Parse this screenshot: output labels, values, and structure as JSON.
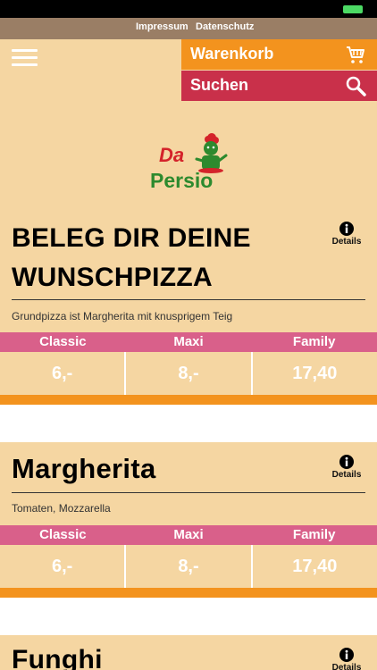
{
  "top_nav": {
    "impressum": "Impressum",
    "datenschutz": "Datenschutz"
  },
  "header": {
    "cart_label": "Warenkorb",
    "search_label": "Suchen"
  },
  "logo": {
    "text_line1": "Da",
    "text_line2": "Persio"
  },
  "colors": {
    "header_bg": "#f5d6a2",
    "orange": "#f3931e",
    "red": "#c9304a",
    "pink": "#d9608a",
    "nav_bg": "#9a7e65"
  },
  "products": [
    {
      "title": "BELEG DIR DEINE WUNSCHPIZZA",
      "details_label": "Details",
      "description": "Grundpizza ist Margherita mit knusprigem Teig",
      "sizes": [
        "Classic",
        "Maxi",
        "Family"
      ],
      "prices": [
        "6,-",
        "8,-",
        "17,40"
      ]
    },
    {
      "title": "Margherita",
      "details_label": "Details",
      "description": "Tomaten, Mozzarella",
      "sizes": [
        "Classic",
        "Maxi",
        "Family"
      ],
      "prices": [
        "6,-",
        "8,-",
        "17,40"
      ]
    },
    {
      "title": "Funghi",
      "details_label": "Details"
    }
  ]
}
